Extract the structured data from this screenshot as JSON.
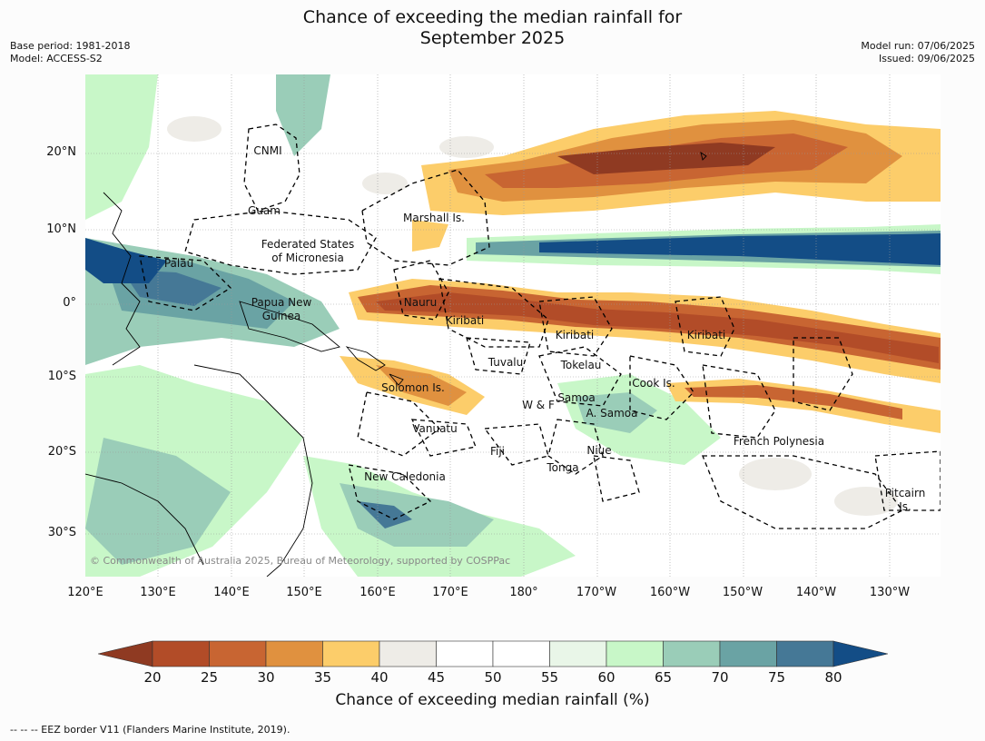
{
  "title_line1": "Chance of exceeding the median rainfall for",
  "title_line2": "September 2025",
  "meta_left": [
    "Base period: 1981-2018",
    "Model: ACCESS-S2"
  ],
  "meta_right": [
    "Model run: 07/06/2025",
    "Issued: 09/06/2025"
  ],
  "copyright": "© Commonwealth of Australia 2025, Bureau of Meteorology, supported by COSPPac",
  "lon_ticks": [
    "120°E",
    "130°E",
    "140°E",
    "150°E",
    "160°E",
    "170°E",
    "180°",
    "170°W",
    "160°W",
    "150°W",
    "140°W",
    "130°W"
  ],
  "lat_ticks": [
    "20°N",
    "10°N",
    "0°",
    "10°S",
    "20°S",
    "30°S"
  ],
  "regions": [
    "CNMI",
    "Guam",
    "Marshall Is.",
    "Federated States",
    "of Micronesia",
    "Palau",
    "Papua New",
    "Guinea",
    "Nauru",
    "Kiribati",
    "Kiribati",
    "Kiribati",
    "Tuvalu",
    "Tokelau",
    "Cook Is.",
    "Solomon Is.",
    "Samoa",
    "W & F",
    "A. Samoa",
    "Vanuatu",
    "Fiji",
    "Niue",
    "French Polynesia",
    "Tonga",
    "New Caledonia",
    "Pitcairn",
    "Is."
  ],
  "colorbar": {
    "labels": [
      "20",
      "25",
      "30",
      "35",
      "40",
      "45",
      "50",
      "55",
      "60",
      "65",
      "70",
      "75",
      "80"
    ],
    "colors": [
      "#8f3a22",
      "#b24c28",
      "#c86532",
      "#e0913f",
      "#fccd6a",
      "#eeece7",
      "#ffffff",
      "#ffffff",
      "#e9f6e8",
      "#c8f7c8",
      "#9acdb8",
      "#6aa3a4",
      "#457896",
      "#134d86"
    ],
    "title": "Chance of exceeding median rainfall (%)"
  },
  "footnote": "--  --  -- EEZ border V11 (Flanders Marine Institute, 2019)."
}
